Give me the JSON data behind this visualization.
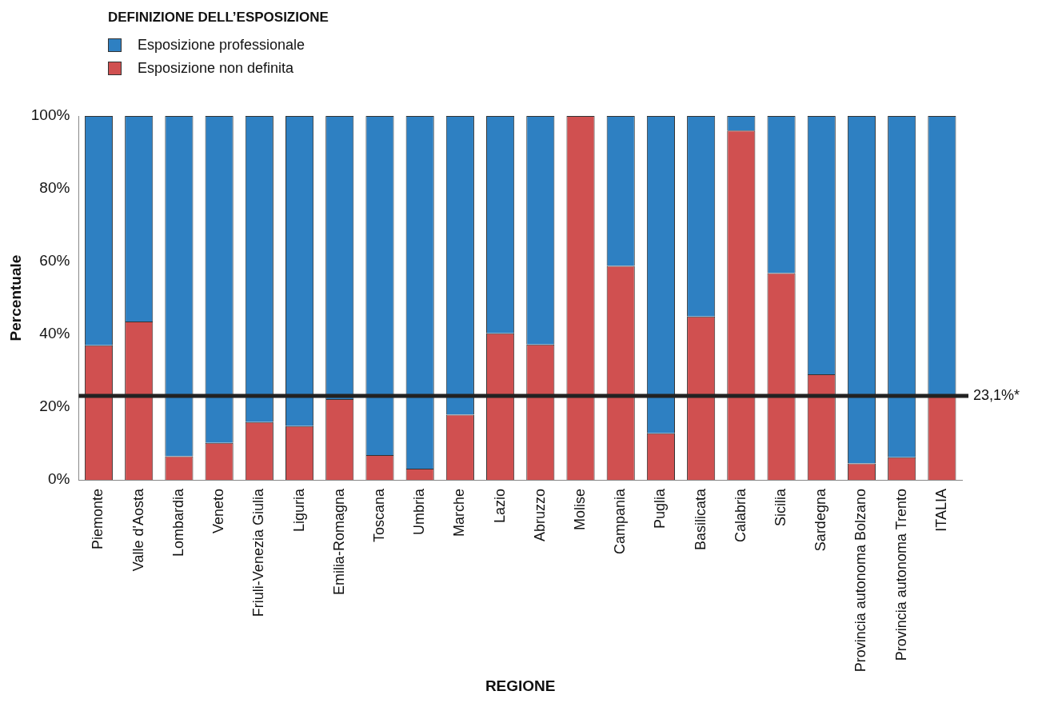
{
  "chart_data": {
    "type": "bar",
    "stacked": true,
    "legend_title": "DEFINIZIONE DELL’ESPOSIZIONE",
    "xlabel": "REGIONE",
    "ylabel": "Percentuale",
    "categories": [
      "Piemonte",
      "Valle d'Aosta",
      "Lombardia",
      "Veneto",
      "Friuli-Venezia Giulia",
      "Liguria",
      "Emilia-Romagna",
      "Toscana",
      "Umbria",
      "Marche",
      "Lazio",
      "Abruzzo",
      "Molise",
      "Campania",
      "Puglia",
      "Basilicata",
      "Calabria",
      "Sicilia",
      "Sardegna",
      "Provincia autonoma Bolzano",
      "Provincia autonoma Trento",
      "ITALIA"
    ],
    "series": [
      {
        "name": "Esposizione non definita",
        "color": "#d05050",
        "values": [
          37,
          43.5,
          6.5,
          10.2,
          15.9,
          14.8,
          22.2,
          6.8,
          3.1,
          17.9,
          40.3,
          37.2,
          100,
          58.8,
          12.8,
          44.9,
          96,
          56.8,
          29,
          4.5,
          6.2,
          23.1
        ]
      },
      {
        "name": "Esposizione professionale",
        "color": "#2e80c2",
        "values": [
          63,
          56.5,
          93.5,
          89.8,
          84.1,
          85.2,
          77.8,
          93.2,
          96.9,
          82.1,
          59.7,
          62.8,
          null,
          41.2,
          87.2,
          55.1,
          4,
          43.2,
          71,
          95.5,
          93.8,
          76.9
        ]
      }
    ],
    "ylim": [
      0,
      100
    ],
    "yticks": [
      {
        "value": 0,
        "label": "0%"
      },
      {
        "value": 20,
        "label": "20%"
      },
      {
        "value": 40,
        "label": "40%"
      },
      {
        "value": 60,
        "label": "60%"
      },
      {
        "value": 80,
        "label": "80%"
      },
      {
        "value": 100,
        "label": "100%"
      }
    ],
    "grid": false,
    "legend": "top left",
    "ref_lines": [
      {
        "axis": "y",
        "value": 23.1,
        "label": "23,1%*",
        "color": "#222222"
      }
    ]
  }
}
